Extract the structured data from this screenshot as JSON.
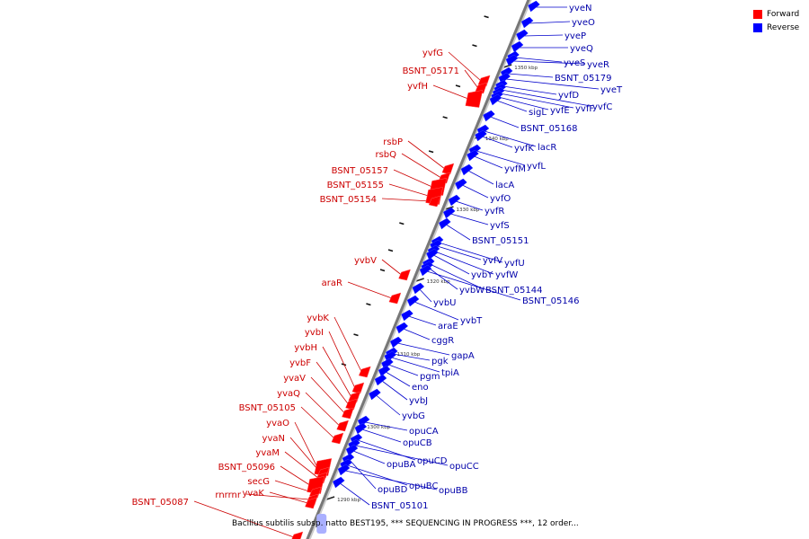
{
  "legend": {
    "forward": {
      "label": "Forward",
      "color": "#ff0000"
    },
    "reverse": {
      "label": "Reverse",
      "color": "#0000ff"
    }
  },
  "caption": "Bacillus subtilis subsp. natto BEST195, *** SEQUENCING IN PROGRESS ***, 12 order...",
  "colors": {
    "forward_label": "#cc0000",
    "reverse_label": "#0000aa",
    "axis": "#888888"
  },
  "ticks": [
    {
      "label": "1290 kbp"
    },
    {
      "label": "1300 kbp"
    },
    {
      "label": "1310 kbp"
    },
    {
      "label": "1320 kbp"
    },
    {
      "label": "1330 kbp"
    },
    {
      "label": "1340 kbp"
    },
    {
      "label": "1350 kbp"
    }
  ],
  "forward_genes": [
    {
      "name": "yvfG"
    },
    {
      "name": "BSNT_05171"
    },
    {
      "name": "yvfH"
    },
    {
      "name": "rsbP"
    },
    {
      "name": "rsbQ"
    },
    {
      "name": "BSNT_05157"
    },
    {
      "name": "BSNT_05155"
    },
    {
      "name": "BSNT_05154"
    },
    {
      "name": "yvbV"
    },
    {
      "name": "araR"
    },
    {
      "name": "yvbK"
    },
    {
      "name": "yvbI"
    },
    {
      "name": "yvbH"
    },
    {
      "name": "yvbF"
    },
    {
      "name": "yvaV"
    },
    {
      "name": "yvaQ"
    },
    {
      "name": "BSNT_05105"
    },
    {
      "name": "yvaO"
    },
    {
      "name": "yvaN"
    },
    {
      "name": "yvaM"
    },
    {
      "name": "BSNT_05096"
    },
    {
      "name": "secG"
    },
    {
      "name": "rnrrnr"
    },
    {
      "name": "yvaK"
    },
    {
      "name": "BSNT_05087"
    }
  ],
  "reverse_genes": [
    {
      "name": "yveN"
    },
    {
      "name": "yveO"
    },
    {
      "name": "yveP"
    },
    {
      "name": "yveQ"
    },
    {
      "name": "yveS"
    },
    {
      "name": "yveR"
    },
    {
      "name": "BSNT_05179"
    },
    {
      "name": "yveT"
    },
    {
      "name": "yvfD"
    },
    {
      "name": "yvfC"
    },
    {
      "name": "yvfF"
    },
    {
      "name": "yvfE"
    },
    {
      "name": "sigL"
    },
    {
      "name": "BSNT_05168"
    },
    {
      "name": "lacR"
    },
    {
      "name": "yvfK"
    },
    {
      "name": "yvfL"
    },
    {
      "name": "yvfM"
    },
    {
      "name": "lacA"
    },
    {
      "name": "yvfO"
    },
    {
      "name": "yvfR"
    },
    {
      "name": "yvfS"
    },
    {
      "name": "BSNT_05151"
    },
    {
      "name": "yvfU"
    },
    {
      "name": "yvfV"
    },
    {
      "name": "yvfW"
    },
    {
      "name": "yvbY"
    },
    {
      "name": "BSNT_05144"
    },
    {
      "name": "yvbW"
    },
    {
      "name": "BSNT_05146"
    },
    {
      "name": "yvbU"
    },
    {
      "name": "yvbT"
    },
    {
      "name": "araE"
    },
    {
      "name": "cggR"
    },
    {
      "name": "gapA"
    },
    {
      "name": "pgk"
    },
    {
      "name": "tpiA"
    },
    {
      "name": "pgm"
    },
    {
      "name": "eno"
    },
    {
      "name": "yvbJ"
    },
    {
      "name": "yvbG"
    },
    {
      "name": "opuCA"
    },
    {
      "name": "opuCB"
    },
    {
      "name": "opuCD"
    },
    {
      "name": "opuCC"
    },
    {
      "name": "opuBA"
    },
    {
      "name": "opuBD"
    },
    {
      "name": "opuBC"
    },
    {
      "name": "opuBB"
    },
    {
      "name": "BSNT_05101"
    }
  ]
}
